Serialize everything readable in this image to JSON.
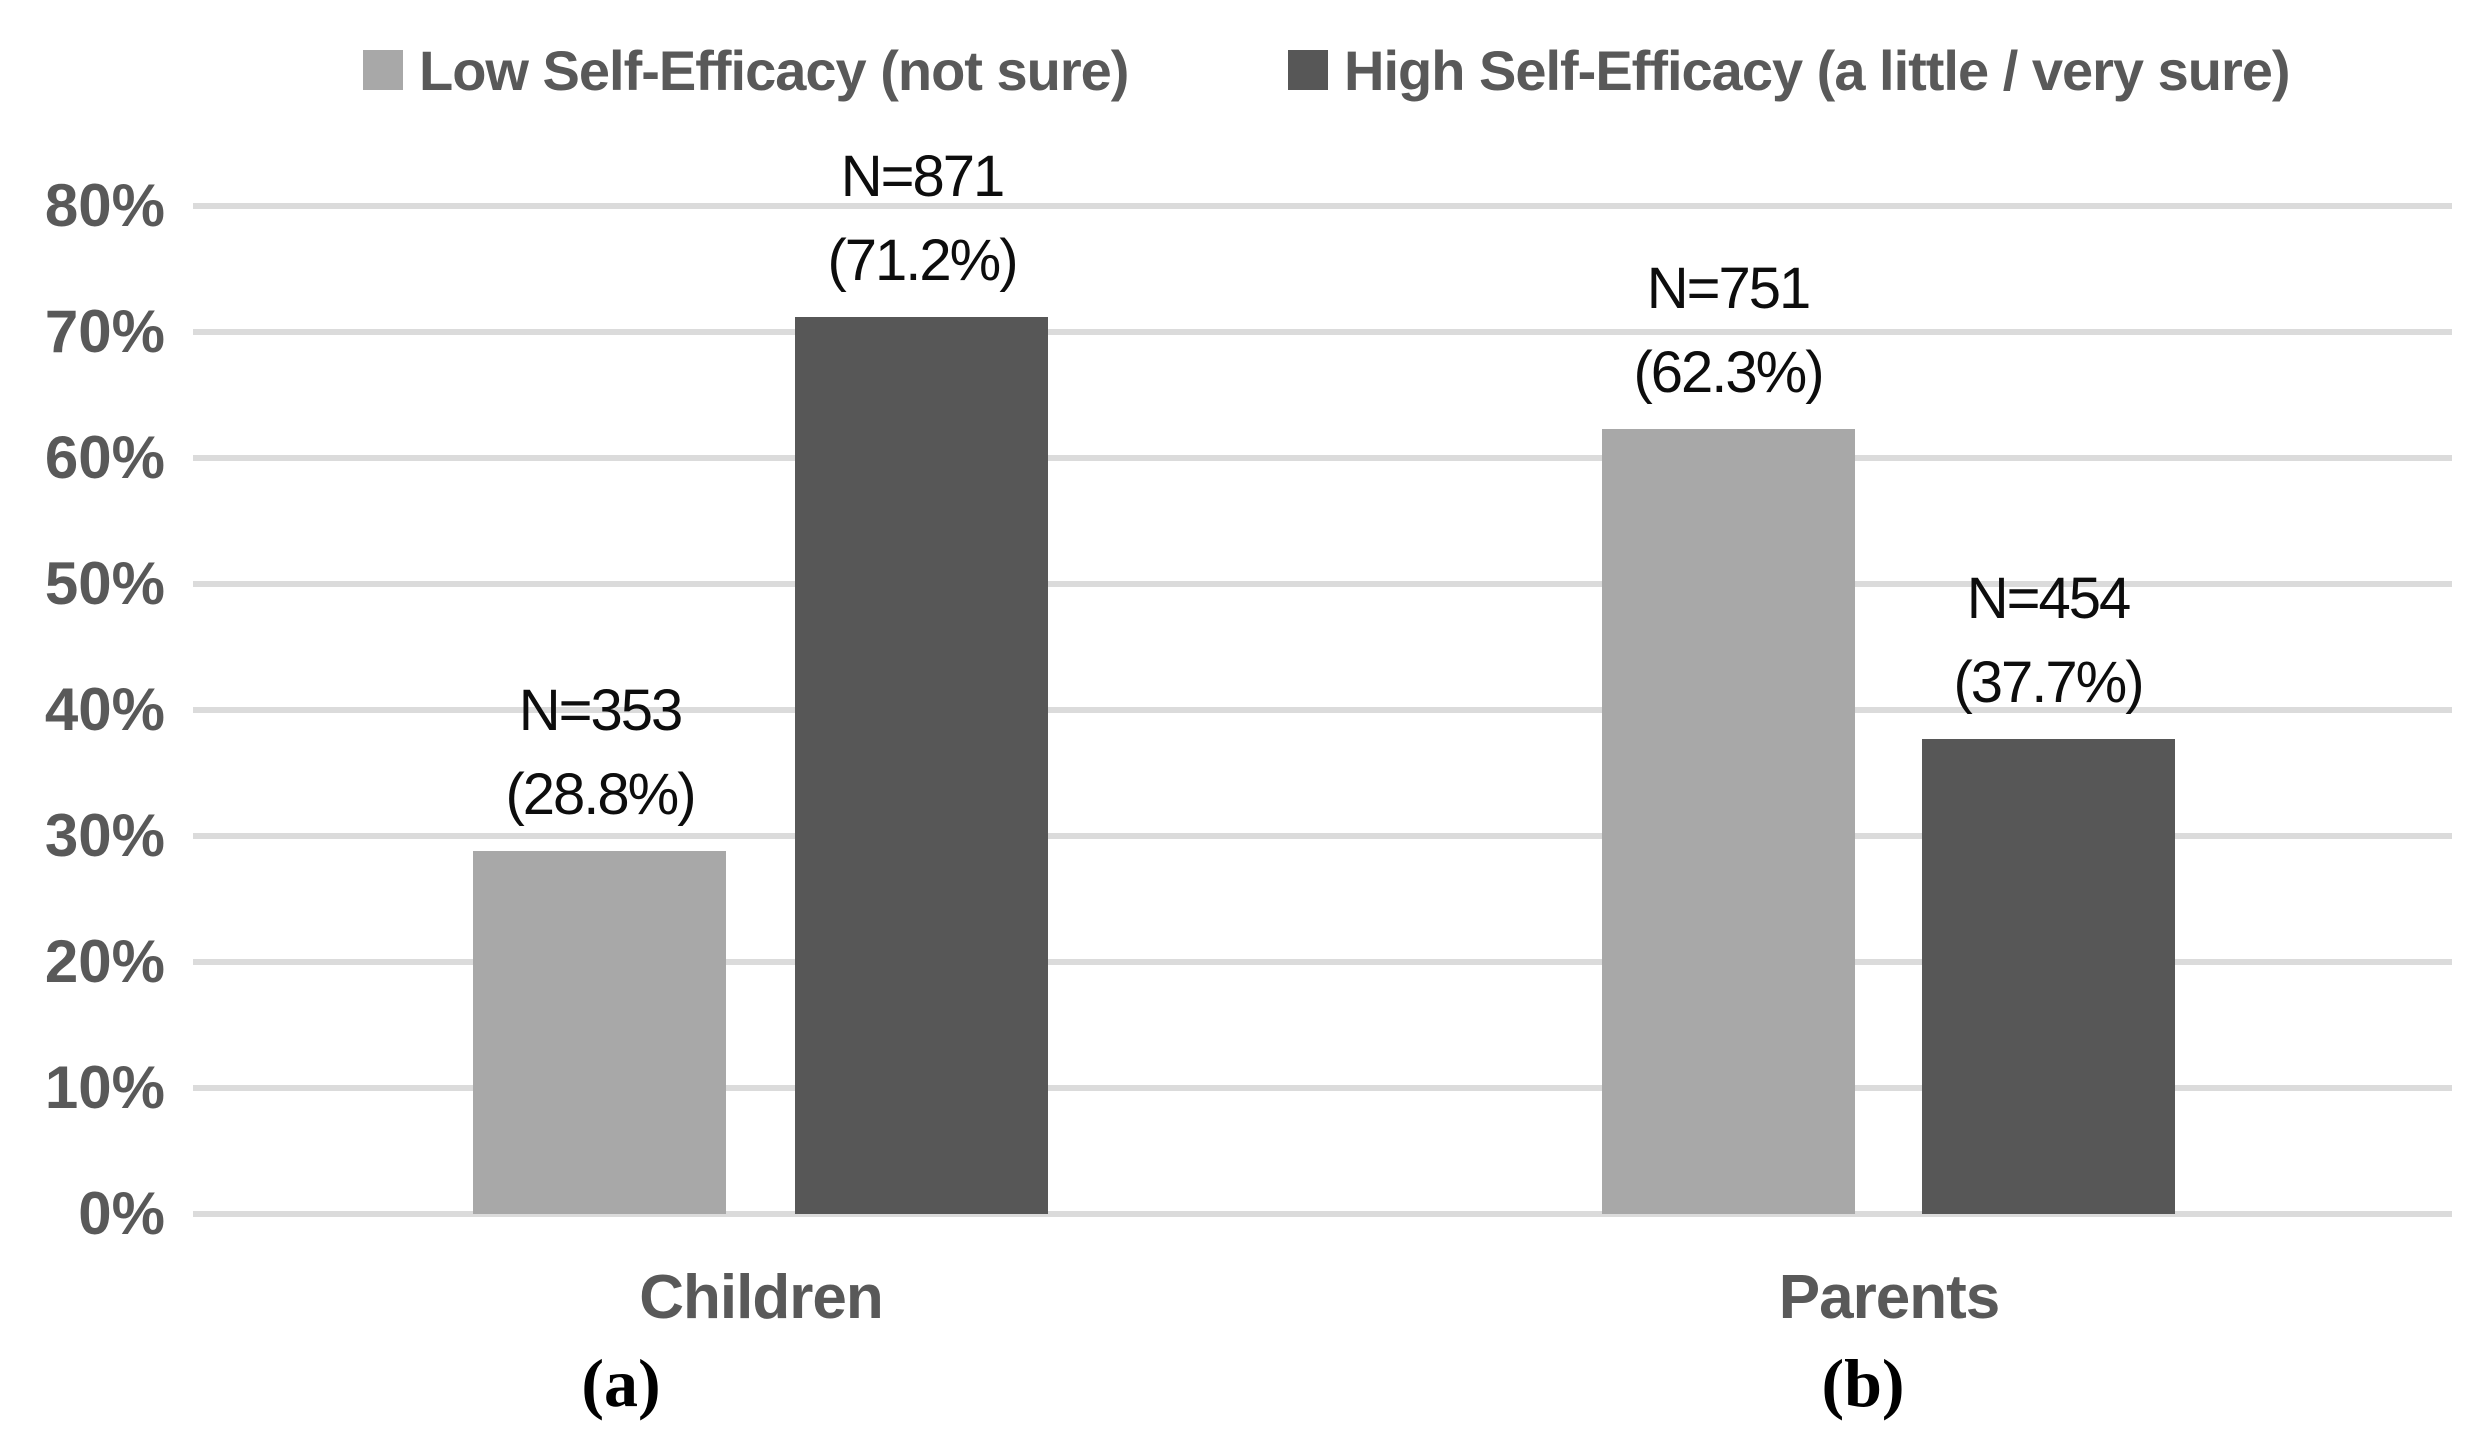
{
  "legend": {
    "items": [
      {
        "label": "Low Self-Efficacy (not sure)",
        "color": "#a8a8a8"
      },
      {
        "label": "High Self-Efficacy (a little / very sure)",
        "color": "#575757"
      }
    ]
  },
  "chart_data": {
    "type": "bar",
    "title": "",
    "categories": [
      "Children",
      "Parents"
    ],
    "series": [
      {
        "name": "Low Self-Efficacy (not sure)",
        "color": "#a8a8a8",
        "values": [
          28.8,
          62.3
        ],
        "counts": [
          353,
          751
        ]
      },
      {
        "name": "High Self-Efficacy (a little / very sure)",
        "color": "#575757",
        "values": [
          71.2,
          37.7
        ],
        "counts": [
          871,
          454
        ]
      }
    ],
    "bar_labels": {
      "children_low": {
        "line1": "N=353",
        "line2": "(28.8%)"
      },
      "children_high": {
        "line1": "N=871",
        "line2": "(71.2%)"
      },
      "parents_low": {
        "line1": "N=751",
        "line2": "(62.3%)"
      },
      "parents_high": {
        "line1": "N=454",
        "line2": "(37.7%)"
      }
    },
    "y_axis": {
      "min": 0,
      "max": 80,
      "tick_step": 10,
      "unit": "%",
      "tick_labels": [
        "80%",
        "70%",
        "60%",
        "50%",
        "40%",
        "30%",
        "20%",
        "10%",
        "0%"
      ]
    },
    "subfigure_labels": {
      "a": "(a)",
      "b": "(b)"
    },
    "grid": true,
    "legend_position": "top",
    "gridline_color": "#dbdbdb",
    "axis_text_color": "#595959",
    "data_label_color": "#0d0d0d",
    "background_color": "#ffffff"
  }
}
